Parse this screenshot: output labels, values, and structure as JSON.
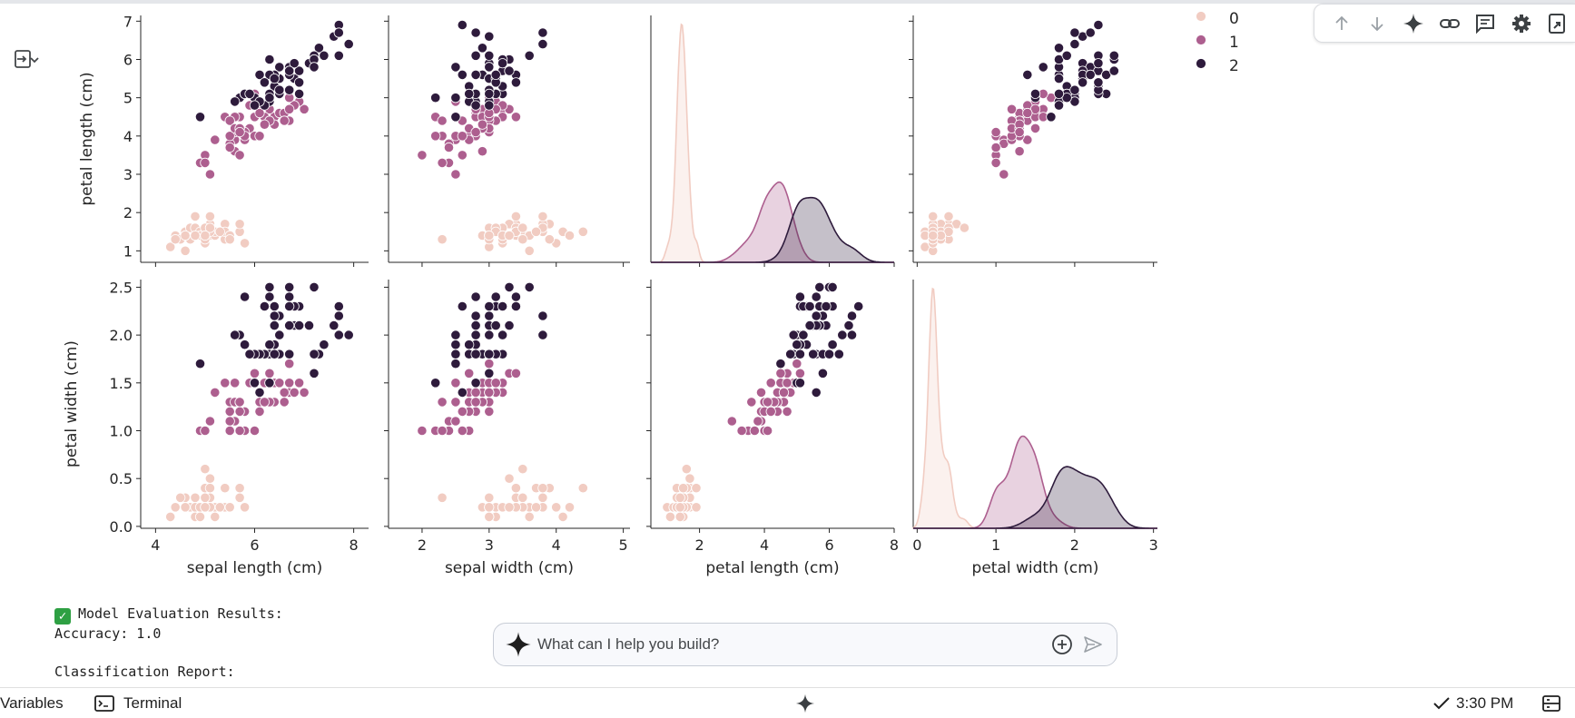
{
  "legend": {
    "entries": [
      "0",
      "1",
      "2"
    ],
    "colors": [
      "#f1ccc2",
      "#ad5f8f",
      "#2e1b3c"
    ]
  },
  "toolbar": {
    "icons": [
      "arrow-up-icon",
      "arrow-down-icon",
      "gemini-sparkle-icon",
      "link-icon",
      "comment-icon",
      "settings-icon",
      "mirror-cell-icon"
    ]
  },
  "output": {
    "line1": "Model Evaluation Results:",
    "line2": "Accuracy: 1.0",
    "line3": "Classification Report:"
  },
  "prompt": {
    "placeholder": "What can I help you build?"
  },
  "statusbar": {
    "variables_label": "Variables",
    "terminal_label": "Terminal",
    "time_label": "3:30 PM"
  },
  "chart_data": {
    "type": "scatter",
    "title": "",
    "columns": [
      "sepal length (cm)",
      "sepal width (cm)",
      "petal length (cm)",
      "petal width (cm)"
    ],
    "rows": [
      "petal length (cm)",
      "petal width (cm)"
    ],
    "hue_labels": [
      "0",
      "1",
      "2"
    ],
    "xlim": [
      [
        3.7,
        8.3
      ],
      [
        1.5,
        5.1
      ],
      [
        0.5,
        8.0
      ],
      [
        -0.05,
        3.05
      ]
    ],
    "xticks": [
      [
        4,
        6,
        8
      ],
      [
        2,
        3,
        4,
        5
      ],
      [
        2,
        4,
        6,
        8
      ],
      [
        0,
        1,
        2,
        3
      ]
    ],
    "ylim": [
      [
        0.7,
        7.15
      ],
      [
        -0.02,
        2.58
      ]
    ],
    "yticks": [
      [
        1,
        2,
        3,
        4,
        5,
        6,
        7
      ],
      [
        0.0,
        0.5,
        1.0,
        1.5,
        2.0,
        2.5
      ]
    ],
    "samples": [
      [
        5.1,
        3.5,
        1.4,
        0.2,
        0
      ],
      [
        4.9,
        3.0,
        1.4,
        0.2,
        0
      ],
      [
        4.7,
        3.2,
        1.3,
        0.2,
        0
      ],
      [
        4.6,
        3.1,
        1.5,
        0.2,
        0
      ],
      [
        5.0,
        3.6,
        1.4,
        0.2,
        0
      ],
      [
        5.4,
        3.9,
        1.7,
        0.4,
        0
      ],
      [
        4.6,
        3.4,
        1.4,
        0.3,
        0
      ],
      [
        5.0,
        3.4,
        1.5,
        0.2,
        0
      ],
      [
        4.4,
        2.9,
        1.4,
        0.2,
        0
      ],
      [
        4.9,
        3.1,
        1.5,
        0.1,
        0
      ],
      [
        5.4,
        3.7,
        1.5,
        0.2,
        0
      ],
      [
        4.8,
        3.4,
        1.6,
        0.2,
        0
      ],
      [
        4.8,
        3.0,
        1.4,
        0.1,
        0
      ],
      [
        4.3,
        3.0,
        1.1,
        0.1,
        0
      ],
      [
        5.8,
        4.0,
        1.2,
        0.2,
        0
      ],
      [
        5.7,
        4.4,
        1.5,
        0.4,
        0
      ],
      [
        5.4,
        3.9,
        1.3,
        0.4,
        0
      ],
      [
        5.1,
        3.5,
        1.4,
        0.3,
        0
      ],
      [
        5.7,
        3.8,
        1.7,
        0.3,
        0
      ],
      [
        5.1,
        3.8,
        1.5,
        0.3,
        0
      ],
      [
        5.4,
        3.4,
        1.7,
        0.2,
        0
      ],
      [
        5.1,
        3.7,
        1.5,
        0.4,
        0
      ],
      [
        4.6,
        3.6,
        1.0,
        0.2,
        0
      ],
      [
        5.1,
        3.3,
        1.7,
        0.5,
        0
      ],
      [
        4.8,
        3.4,
        1.9,
        0.2,
        0
      ],
      [
        5.0,
        3.0,
        1.6,
        0.2,
        0
      ],
      [
        5.0,
        3.4,
        1.6,
        0.4,
        0
      ],
      [
        5.2,
        3.5,
        1.5,
        0.2,
        0
      ],
      [
        5.2,
        3.4,
        1.4,
        0.2,
        0
      ],
      [
        4.7,
        3.2,
        1.6,
        0.2,
        0
      ],
      [
        4.8,
        3.1,
        1.6,
        0.2,
        0
      ],
      [
        5.4,
        3.4,
        1.5,
        0.4,
        0
      ],
      [
        5.2,
        4.1,
        1.5,
        0.1,
        0
      ],
      [
        5.5,
        4.2,
        1.4,
        0.2,
        0
      ],
      [
        4.9,
        3.1,
        1.5,
        0.2,
        0
      ],
      [
        5.0,
        3.2,
        1.2,
        0.2,
        0
      ],
      [
        5.5,
        3.5,
        1.3,
        0.2,
        0
      ],
      [
        4.9,
        3.6,
        1.4,
        0.1,
        0
      ],
      [
        4.4,
        3.0,
        1.3,
        0.2,
        0
      ],
      [
        5.1,
        3.4,
        1.5,
        0.2,
        0
      ],
      [
        5.0,
        3.5,
        1.3,
        0.3,
        0
      ],
      [
        4.5,
        2.3,
        1.3,
        0.3,
        0
      ],
      [
        4.4,
        3.2,
        1.3,
        0.2,
        0
      ],
      [
        5.0,
        3.5,
        1.6,
        0.6,
        0
      ],
      [
        5.1,
        3.8,
        1.9,
        0.4,
        0
      ],
      [
        4.8,
        3.0,
        1.4,
        0.3,
        0
      ],
      [
        5.1,
        3.8,
        1.6,
        0.2,
        0
      ],
      [
        4.6,
        3.2,
        1.4,
        0.2,
        0
      ],
      [
        5.3,
        3.7,
        1.5,
        0.2,
        0
      ],
      [
        5.0,
        3.3,
        1.4,
        0.2,
        0
      ],
      [
        7.0,
        3.2,
        4.7,
        1.4,
        1
      ],
      [
        6.4,
        3.2,
        4.5,
        1.5,
        1
      ],
      [
        6.9,
        3.1,
        4.9,
        1.5,
        1
      ],
      [
        5.5,
        2.3,
        4.0,
        1.3,
        1
      ],
      [
        6.5,
        2.8,
        4.6,
        1.5,
        1
      ],
      [
        5.7,
        2.8,
        4.5,
        1.3,
        1
      ],
      [
        6.3,
        3.3,
        4.7,
        1.6,
        1
      ],
      [
        4.9,
        2.4,
        3.3,
        1.0,
        1
      ],
      [
        6.6,
        2.9,
        4.6,
        1.3,
        1
      ],
      [
        5.2,
        2.7,
        3.9,
        1.4,
        1
      ],
      [
        5.0,
        2.0,
        3.5,
        1.0,
        1
      ],
      [
        5.9,
        3.0,
        4.2,
        1.5,
        1
      ],
      [
        6.0,
        2.2,
        4.0,
        1.0,
        1
      ],
      [
        6.1,
        2.9,
        4.7,
        1.4,
        1
      ],
      [
        5.6,
        2.9,
        3.6,
        1.3,
        1
      ],
      [
        6.7,
        3.1,
        4.4,
        1.4,
        1
      ],
      [
        5.6,
        3.0,
        4.5,
        1.5,
        1
      ],
      [
        5.8,
        2.7,
        4.1,
        1.0,
        1
      ],
      [
        6.2,
        2.2,
        4.5,
        1.5,
        1
      ],
      [
        5.6,
        2.5,
        3.9,
        1.1,
        1
      ],
      [
        5.9,
        3.2,
        4.8,
        1.8,
        1
      ],
      [
        6.1,
        2.8,
        4.0,
        1.3,
        1
      ],
      [
        6.3,
        2.5,
        4.9,
        1.5,
        1
      ],
      [
        6.1,
        2.8,
        4.7,
        1.2,
        1
      ],
      [
        6.4,
        2.9,
        4.3,
        1.3,
        1
      ],
      [
        6.6,
        3.0,
        4.4,
        1.4,
        1
      ],
      [
        6.8,
        2.8,
        4.8,
        1.4,
        1
      ],
      [
        6.7,
        3.0,
        5.0,
        1.7,
        1
      ],
      [
        6.0,
        2.9,
        4.5,
        1.5,
        1
      ],
      [
        5.7,
        2.6,
        3.5,
        1.0,
        1
      ],
      [
        5.5,
        2.4,
        3.8,
        1.1,
        1
      ],
      [
        5.5,
        2.4,
        3.7,
        1.0,
        1
      ],
      [
        5.8,
        2.7,
        3.9,
        1.2,
        1
      ],
      [
        6.0,
        2.7,
        5.1,
        1.6,
        1
      ],
      [
        5.4,
        3.0,
        4.5,
        1.5,
        1
      ],
      [
        6.0,
        3.4,
        4.5,
        1.6,
        1
      ],
      [
        6.7,
        3.1,
        4.7,
        1.5,
        1
      ],
      [
        6.3,
        2.3,
        4.4,
        1.3,
        1
      ],
      [
        5.6,
        3.0,
        4.1,
        1.3,
        1
      ],
      [
        5.5,
        2.5,
        4.0,
        1.3,
        1
      ],
      [
        5.5,
        2.6,
        4.4,
        1.2,
        1
      ],
      [
        6.1,
        3.0,
        4.6,
        1.4,
        1
      ],
      [
        5.8,
        2.6,
        4.0,
        1.2,
        1
      ],
      [
        5.0,
        2.3,
        3.3,
        1.0,
        1
      ],
      [
        5.6,
        2.7,
        4.2,
        1.3,
        1
      ],
      [
        5.7,
        3.0,
        4.2,
        1.2,
        1
      ],
      [
        5.7,
        2.9,
        4.2,
        1.3,
        1
      ],
      [
        6.2,
        2.9,
        4.3,
        1.3,
        1
      ],
      [
        5.1,
        2.5,
        3.0,
        1.1,
        1
      ],
      [
        5.7,
        2.8,
        4.1,
        1.3,
        1
      ],
      [
        6.3,
        3.3,
        6.0,
        2.5,
        2
      ],
      [
        5.8,
        2.7,
        5.1,
        1.9,
        2
      ],
      [
        7.1,
        3.0,
        5.9,
        2.1,
        2
      ],
      [
        6.3,
        2.9,
        5.6,
        1.8,
        2
      ],
      [
        6.5,
        3.0,
        5.8,
        2.2,
        2
      ],
      [
        7.6,
        3.0,
        6.6,
        2.1,
        2
      ],
      [
        4.9,
        2.5,
        4.5,
        1.7,
        2
      ],
      [
        7.3,
        2.9,
        6.3,
        1.8,
        2
      ],
      [
        6.7,
        2.5,
        5.8,
        1.8,
        2
      ],
      [
        7.2,
        3.6,
        6.1,
        2.5,
        2
      ],
      [
        6.5,
        3.2,
        5.1,
        2.0,
        2
      ],
      [
        6.4,
        2.7,
        5.3,
        1.9,
        2
      ],
      [
        6.8,
        3.0,
        5.5,
        2.1,
        2
      ],
      [
        5.7,
        2.5,
        5.0,
        2.0,
        2
      ],
      [
        5.8,
        2.8,
        5.1,
        2.4,
        2
      ],
      [
        6.4,
        3.2,
        5.3,
        2.3,
        2
      ],
      [
        6.5,
        3.0,
        5.5,
        1.8,
        2
      ],
      [
        7.7,
        3.8,
        6.7,
        2.2,
        2
      ],
      [
        7.7,
        2.6,
        6.9,
        2.3,
        2
      ],
      [
        6.0,
        2.2,
        5.0,
        1.5,
        2
      ],
      [
        6.9,
        3.2,
        5.7,
        2.3,
        2
      ],
      [
        5.6,
        2.8,
        4.9,
        2.0,
        2
      ],
      [
        7.7,
        2.8,
        6.7,
        2.0,
        2
      ],
      [
        6.3,
        2.7,
        4.9,
        1.8,
        2
      ],
      [
        6.7,
        3.3,
        5.7,
        2.1,
        2
      ],
      [
        7.2,
        3.2,
        6.0,
        1.8,
        2
      ],
      [
        6.2,
        2.8,
        4.8,
        1.8,
        2
      ],
      [
        6.1,
        3.0,
        4.9,
        1.8,
        2
      ],
      [
        6.4,
        2.8,
        5.6,
        2.1,
        2
      ],
      [
        7.2,
        3.0,
        5.8,
        1.6,
        2
      ],
      [
        7.4,
        2.8,
        6.1,
        1.9,
        2
      ],
      [
        7.9,
        3.8,
        6.4,
        2.0,
        2
      ],
      [
        6.4,
        2.8,
        5.6,
        2.2,
        2
      ],
      [
        6.3,
        2.8,
        5.1,
        1.5,
        2
      ],
      [
        6.1,
        2.6,
        5.6,
        1.4,
        2
      ],
      [
        7.7,
        3.0,
        6.1,
        2.3,
        2
      ],
      [
        6.3,
        3.4,
        5.6,
        2.4,
        2
      ],
      [
        6.4,
        3.1,
        5.5,
        1.8,
        2
      ],
      [
        6.0,
        3.0,
        4.8,
        1.8,
        2
      ],
      [
        6.9,
        3.1,
        5.4,
        2.1,
        2
      ],
      [
        6.7,
        3.1,
        5.6,
        2.4,
        2
      ],
      [
        6.9,
        3.1,
        5.1,
        2.3,
        2
      ],
      [
        5.8,
        2.7,
        5.1,
        1.9,
        2
      ],
      [
        6.8,
        3.2,
        5.9,
        2.3,
        2
      ],
      [
        6.7,
        3.3,
        5.7,
        2.5,
        2
      ],
      [
        6.7,
        3.0,
        5.2,
        2.3,
        2
      ],
      [
        6.3,
        2.5,
        5.0,
        1.9,
        2
      ],
      [
        6.5,
        3.0,
        5.2,
        2.0,
        2
      ],
      [
        6.2,
        3.4,
        5.4,
        2.3,
        2
      ],
      [
        5.9,
        3.0,
        5.1,
        1.8,
        2
      ]
    ]
  }
}
